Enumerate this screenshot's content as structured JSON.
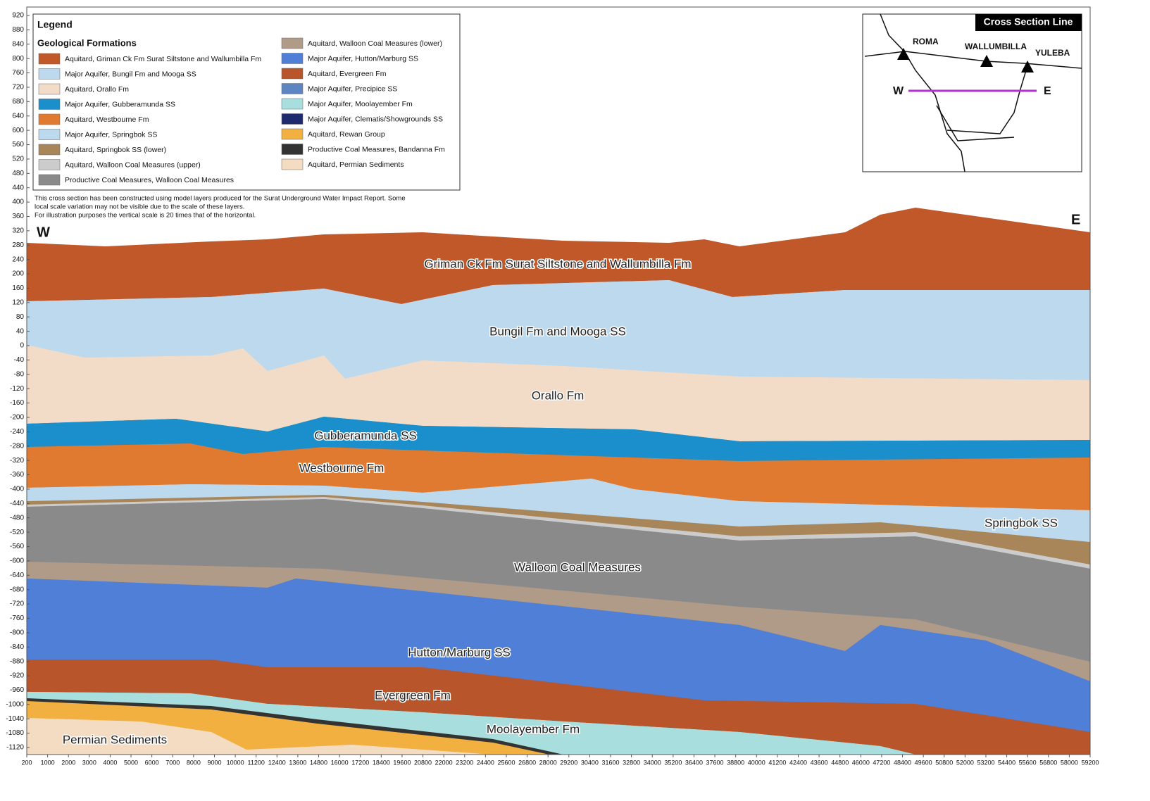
{
  "legend": {
    "title": "Legend",
    "subtitle": "Geological Formations",
    "items": [
      {
        "label": "Aquitard, Griman Ck Fm  Surat Siltstone and Wallumbilla Fm",
        "color": "#c0582a"
      },
      {
        "label": "Major Aquifer, Bungil Fm and Mooga SS",
        "color": "#bcd9ee"
      },
      {
        "label": "Aquitard, Orallo Fm",
        "color": "#f2dcc8"
      },
      {
        "label": "Major Aquifer, Gubberamunda SS",
        "color": "#1a8fcc"
      },
      {
        "label": "Aquitard, Westbourne Fm",
        "color": "#e07a30"
      },
      {
        "label": "Major Aquifer, Springbok SS",
        "color": "#bcd9ee"
      },
      {
        "label": "Aquitard, Springbok SS (lower)",
        "color": "#a8865a"
      },
      {
        "label": "Aquitard, Walloon Coal Measures (upper)",
        "color": "#cccccc"
      },
      {
        "label": "Productive Coal Measures, Walloon Coal Measures",
        "color": "#8a8a8a"
      },
      {
        "label": "Aquitard, Walloon Coal Measures (lower)",
        "color": "#b09a88"
      },
      {
        "label": "Major Aquifer, Hutton/Marburg SS",
        "color": "#4f7fd6"
      },
      {
        "label": "Aquitard, Evergreen Fm",
        "color": "#b8552a"
      },
      {
        "label": "Major Aquifer, Precipice SS",
        "color": "#5c85c2"
      },
      {
        "label": "Major Aquifer, Moolayember Fm",
        "color": "#a8dede"
      },
      {
        "label": "Major Aquifer, Clematis/Showgrounds SS",
        "color": "#1d2a6e"
      },
      {
        "label": "Aquitard, Rewan Group",
        "color": "#f2b040"
      },
      {
        "label": "Productive Coal Measures, Bandanna Fm",
        "color": "#333333"
      },
      {
        "label": "Aquitard, Permian Sediments",
        "color": "#f3dcc2"
      }
    ]
  },
  "note": [
    "This cross section has been constructed using model layers produced for the Surat Underground Water Impact Report. Some",
    "local scale variation may not be visible due to the scale of these layers.",
    "For illustration purposes the vertical scale is 20 times that of the horizontal."
  ],
  "inset": {
    "title": "Cross Section Line",
    "towns": [
      "ROMA",
      "WALLUMBILLA",
      "YULEBA"
    ],
    "west": "W",
    "east": "E"
  },
  "section": {
    "west": "W",
    "east": "E",
    "layers": [
      "Griman Ck Fm  Surat Siltstone and Wallumbilla Fm",
      "Bungil Fm and Mooga SS",
      "Orallo Fm",
      "Gubberamunda SS",
      "Westbourne Fm",
      "Springbok SS",
      "Walloon Coal Measures",
      "Hutton/Marburg SS",
      "Evergreen Fm",
      "Moolayember Fm",
      "Permian Sediments"
    ]
  },
  "y_axis": {
    "ticks": [
      920,
      880,
      840,
      800,
      760,
      720,
      680,
      640,
      600,
      560,
      520,
      480,
      440,
      400,
      360,
      320,
      280,
      240,
      200,
      160,
      120,
      80,
      40,
      0,
      -40,
      -80,
      -120,
      -160,
      -200,
      -240,
      -280,
      -320,
      -360,
      -400,
      -440,
      -480,
      -520,
      -560,
      -600,
      -640,
      -680,
      -720,
      -760,
      -800,
      -840,
      -880,
      -920,
      -960,
      -1000,
      -1040,
      -1080,
      -1120
    ]
  },
  "x_axis": {
    "ticks": [
      200,
      1000,
      2000,
      3000,
      4000,
      5000,
      6000,
      7000,
      8000,
      9000,
      10000,
      11200,
      12400,
      13600,
      14800,
      16000,
      17200,
      18400,
      19600,
      20800,
      22000,
      23200,
      24400,
      25600,
      26800,
      28000,
      29200,
      30400,
      31600,
      32800,
      34000,
      35200,
      36400,
      37600,
      38800,
      40000,
      41200,
      42400,
      43600,
      44800,
      46000,
      47200,
      48400,
      49600,
      50800,
      52000,
      53200,
      54400,
      55600,
      56800,
      58000,
      59200
    ]
  }
}
